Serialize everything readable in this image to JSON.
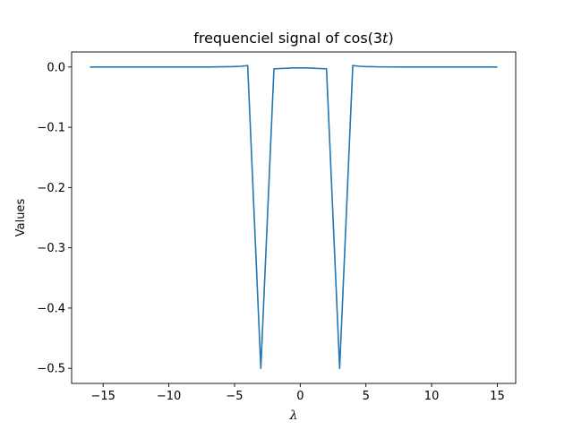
{
  "chart_data": {
    "type": "line",
    "title": "frequenciel signal of cos(3t)",
    "title_parts": {
      "prefix": "frequenciel signal of cos(3",
      "var": "t",
      "suffix": ")"
    },
    "xlabel": "λ",
    "ylabel": "Values",
    "xlim": [
      -17.4,
      16.4
    ],
    "ylim": [
      -0.525,
      0.025
    ],
    "xticks": [
      -15,
      -10,
      -5,
      0,
      5,
      10,
      15
    ],
    "xtick_labels": [
      "−15",
      "−10",
      "−5",
      "0",
      "5",
      "10",
      "15"
    ],
    "yticks": [
      0.0,
      -0.1,
      -0.2,
      -0.3,
      -0.4,
      -0.5
    ],
    "ytick_labels": [
      "0.0",
      "−0.1",
      "−0.2",
      "−0.3",
      "−0.4",
      "−0.5"
    ],
    "grid": false,
    "series": [
      {
        "color": "#1f77b4",
        "x": [
          -16,
          -14,
          -12,
          -10,
          -8,
          -7,
          -6,
          -5,
          -4.5,
          -4,
          -3,
          -2,
          -1.5,
          -1,
          -0.5,
          0,
          0.5,
          1,
          1.5,
          2,
          3,
          4,
          4.5,
          5,
          6,
          7,
          8,
          10,
          12,
          14,
          15
        ],
        "y": [
          0.0,
          0.0,
          0.0,
          0.0,
          0.0,
          0.0,
          0.0004,
          0.0007,
          0.0012,
          0.0025,
          -0.5,
          -0.003,
          -0.0025,
          -0.002,
          -0.0015,
          -0.0015,
          -0.0015,
          -0.002,
          -0.0025,
          -0.003,
          -0.5,
          0.0025,
          0.0012,
          0.0007,
          0.0003,
          0.0001,
          0.0,
          0.0,
          0.0,
          0.0,
          0.0
        ]
      }
    ]
  }
}
